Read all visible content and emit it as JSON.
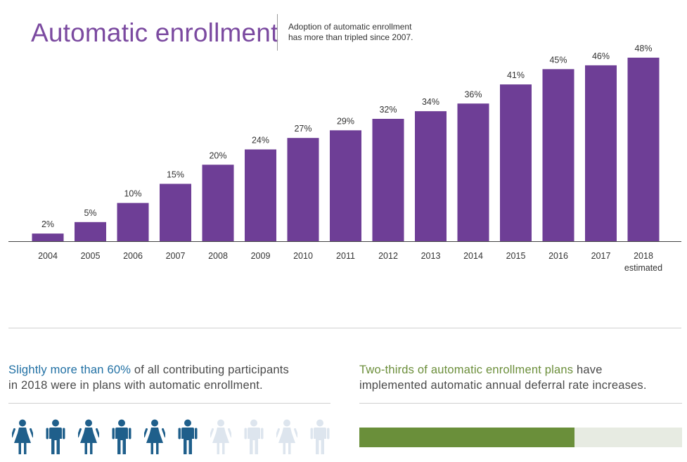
{
  "header": {
    "title": "Automatic enrollment",
    "subtitle_line1": "Adoption of automatic enrollment",
    "subtitle_line2": "has more than tripled since 2007."
  },
  "chart_data": {
    "type": "bar",
    "categories": [
      "2004",
      "2005",
      "2006",
      "2007",
      "2008",
      "2009",
      "2010",
      "2011",
      "2012",
      "2013",
      "2014",
      "2015",
      "2016",
      "2017",
      "2018"
    ],
    "category_sublabels": [
      "",
      "",
      "",
      "",
      "",
      "",
      "",
      "",
      "",
      "",
      "",
      "",
      "",
      "",
      "estimated"
    ],
    "values": [
      2,
      5,
      10,
      15,
      20,
      24,
      27,
      29,
      32,
      34,
      36,
      41,
      45,
      46,
      48
    ],
    "value_labels": [
      "2%",
      "5%",
      "10%",
      "15%",
      "20%",
      "24%",
      "27%",
      "29%",
      "32%",
      "34%",
      "36%",
      "41%",
      "45%",
      "46%",
      "48%"
    ],
    "ylim": [
      0,
      48
    ],
    "bar_color": "#6e3e96",
    "grid": false
  },
  "stat_left": {
    "highlight": "Slightly more than 60%",
    "rest_line1": " of all contributing participants",
    "line2": "in 2018 were in plans with automatic enrollment.",
    "highlight_color": "#1f6fa3",
    "icons": [
      {
        "icon": "female-person-icon",
        "active": true
      },
      {
        "icon": "male-person-icon",
        "active": true
      },
      {
        "icon": "female-person-icon",
        "active": true
      },
      {
        "icon": "male-person-icon",
        "active": true
      },
      {
        "icon": "female-person-icon",
        "active": true
      },
      {
        "icon": "male-person-icon",
        "active": true
      },
      {
        "icon": "female-person-icon",
        "active": false
      },
      {
        "icon": "male-person-icon",
        "active": false
      },
      {
        "icon": "female-person-icon",
        "active": false
      },
      {
        "icon": "male-person-icon",
        "active": false
      }
    ],
    "active_color": "#1f5f8b",
    "inactive_color": "#dde5ee"
  },
  "stat_right": {
    "highlight": "Two-thirds of automatic enrollment plans",
    "rest_line1": " have",
    "line2": "implemented automatic annual deferral rate increases.",
    "highlight_color": "#6b8e3a",
    "progress_fraction": 0.667
  }
}
